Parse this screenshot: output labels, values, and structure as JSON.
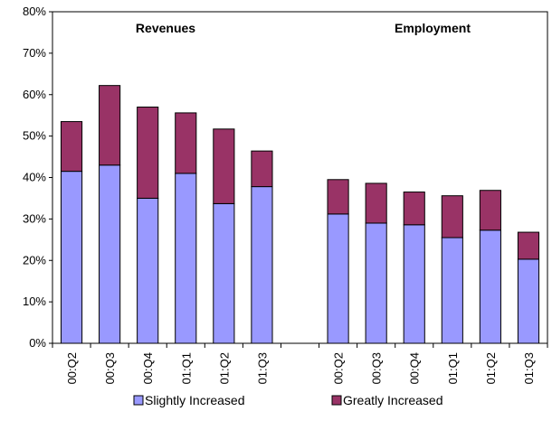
{
  "chart_data": {
    "type": "bar",
    "stacked": true,
    "ylim": [
      0,
      80
    ],
    "yticks": [
      "0%",
      "10%",
      "20%",
      "30%",
      "40%",
      "50%",
      "60%",
      "70%",
      "80%"
    ],
    "grid": false,
    "legend_position": "bottom",
    "groups": [
      {
        "title": "Revenues",
        "categories": [
          "00:Q2",
          "00:Q3",
          "00:Q4",
          "01:Q1",
          "01:Q2",
          "01:Q3"
        ],
        "series": [
          {
            "name": "Slightly Increased",
            "values": [
              41.5,
              43,
              35,
              41,
              33.7,
              37.8
            ]
          },
          {
            "name": "Greatly Increased",
            "values": [
              12,
              19.2,
              22,
              14.6,
              18,
              8.6
            ]
          }
        ]
      },
      {
        "title": "Employment",
        "categories": [
          "00:Q2",
          "00:Q3",
          "00:Q4",
          "01:Q1",
          "01:Q2",
          "01:Q3"
        ],
        "series": [
          {
            "name": "Slightly Increased",
            "values": [
              31.2,
              29,
              28.6,
              25.5,
              27.3,
              20.3
            ]
          },
          {
            "name": "Greatly Increased",
            "values": [
              8.3,
              9.6,
              7.9,
              10.1,
              9.6,
              6.5
            ]
          }
        ]
      }
    ],
    "legend": [
      "Slightly Increased",
      "Greatly Increased"
    ],
    "colors": {
      "Slightly Increased": "#9999ff",
      "Greatly Increased": "#993366"
    }
  }
}
